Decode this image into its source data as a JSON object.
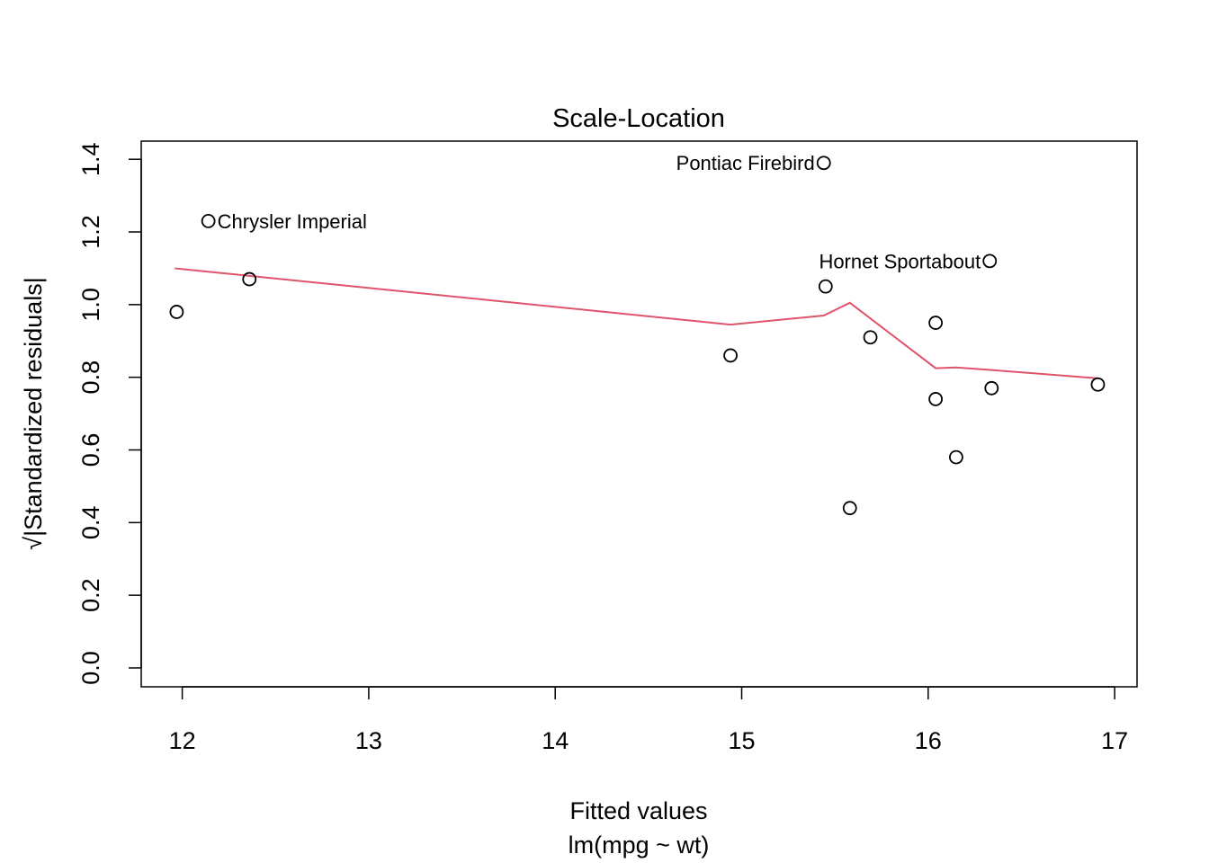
{
  "chart_data": {
    "type": "scatter",
    "title": "Scale-Location",
    "xlabel": "Fitted values",
    "subtitle": "lm(mpg ~ wt)",
    "ylabel": "√|Standardized residuals|",
    "xlim": [
      11.78,
      17.12
    ],
    "ylim": [
      -0.052,
      1.45
    ],
    "x_ticks": [
      "12",
      "13",
      "14",
      "15",
      "16",
      "17"
    ],
    "y_ticks": [
      "0.0",
      "0.2",
      "0.4",
      "0.6",
      "0.8",
      "1.0",
      "1.2",
      "1.4"
    ],
    "grid": false,
    "points": [
      {
        "x": 11.97,
        "y": 0.98
      },
      {
        "x": 12.14,
        "y": 1.23,
        "label": "Chrysler Imperial",
        "label_side": "right"
      },
      {
        "x": 12.36,
        "y": 1.07
      },
      {
        "x": 14.94,
        "y": 0.86
      },
      {
        "x": 15.44,
        "y": 1.39,
        "label": "Pontiac Firebird",
        "label_side": "left"
      },
      {
        "x": 15.45,
        "y": 1.05
      },
      {
        "x": 15.58,
        "y": 0.44
      },
      {
        "x": 15.69,
        "y": 0.91
      },
      {
        "x": 16.04,
        "y": 0.95
      },
      {
        "x": 16.04,
        "y": 0.74
      },
      {
        "x": 16.15,
        "y": 0.58
      },
      {
        "x": 16.33,
        "y": 1.12,
        "label": "Hornet Sportabout",
        "label_side": "left"
      },
      {
        "x": 16.34,
        "y": 0.77
      },
      {
        "x": 16.91,
        "y": 0.78
      }
    ],
    "smoother": {
      "color": "#DF536B",
      "x": [
        11.96,
        14.94,
        15.44,
        15.58,
        16.04,
        16.15,
        16.34,
        16.91
      ],
      "y": [
        1.1,
        0.945,
        0.97,
        1.005,
        0.825,
        0.827,
        0.82,
        0.797
      ]
    }
  }
}
